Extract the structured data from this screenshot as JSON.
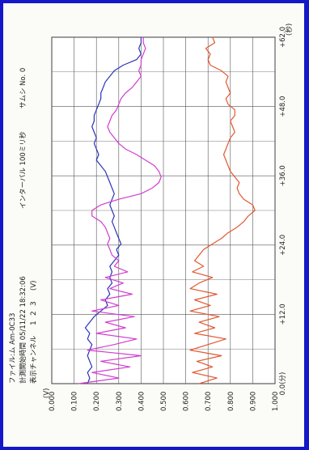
{
  "header": {
    "line1": "ファイル:ム  Am-0C33",
    "line2": "計測開始時間 05/11/22  18:32:06",
    "line3": "表示チャンネル",
    "channels": [
      "1",
      "2",
      "3"
    ],
    "unit_v": "(V)",
    "interval": "インターバル 100ミリ秒",
    "sheet": "サムシ No. 0"
  },
  "colors": {
    "series1": "#2b34b8",
    "series2": "#e3572f",
    "series3": "#d23bd0",
    "grid": "#555555",
    "border": "#1418c8"
  },
  "chart_data": {
    "type": "line",
    "rotated": "90deg-clockwise",
    "xlabel": "(秒)",
    "x_ticks": [
      "0.0(分)",
      "+12.0",
      "+24.0",
      "+36.0",
      "+48.0",
      "+62.0"
    ],
    "xlim": [
      0,
      62
    ],
    "ylabel": "(V)",
    "y_ticks": [
      "1.000",
      "0.900",
      "0.800",
      "0.700",
      "0.600",
      "0.500",
      "0.400",
      "0.300",
      "0.200",
      "0.100",
      "0.000"
    ],
    "ylim": [
      0,
      1
    ],
    "grid": true,
    "series": [
      {
        "name": "1",
        "color": "#2b34b8",
        "x": [
          0,
          1,
          2,
          3,
          4,
          5,
          6,
          7,
          8,
          9,
          10,
          11,
          12,
          13,
          14,
          15,
          16,
          17,
          18,
          19,
          20,
          21,
          22,
          23,
          24,
          25,
          26,
          27,
          28,
          29,
          30,
          31,
          32,
          33,
          34,
          35,
          36,
          37,
          38,
          39,
          40,
          41,
          42,
          43,
          44,
          45,
          46,
          47,
          48,
          49,
          50,
          51,
          52,
          53,
          54,
          55,
          56,
          57,
          58,
          59,
          60,
          61,
          62
        ],
        "values": [
          0.16,
          0.17,
          0.16,
          0.18,
          0.17,
          0.16,
          0.17,
          0.18,
          0.16,
          0.17,
          0.15,
          0.17,
          0.19,
          0.22,
          0.25,
          0.24,
          0.26,
          0.25,
          0.27,
          0.26,
          0.27,
          0.26,
          0.28,
          0.3,
          0.29,
          0.31,
          0.3,
          0.29,
          0.28,
          0.27,
          0.28,
          0.27,
          0.26,
          0.27,
          0.28,
          0.27,
          0.26,
          0.25,
          0.24,
          0.22,
          0.2,
          0.21,
          0.2,
          0.19,
          0.2,
          0.19,
          0.18,
          0.19,
          0.19,
          0.2,
          0.21,
          0.22,
          0.22,
          0.23,
          0.24,
          0.26,
          0.28,
          0.32,
          0.38,
          0.4,
          0.39,
          0.4,
          0.4
        ]
      },
      {
        "name": "2",
        "color": "#e3572f",
        "x": [
          0,
          1,
          2,
          3,
          4,
          5,
          6,
          7,
          8,
          9,
          10,
          11,
          12,
          13,
          14,
          15,
          16,
          17,
          18,
          19,
          20,
          21,
          22,
          23,
          24,
          25,
          26,
          27,
          28,
          29,
          30,
          31,
          32,
          33,
          34,
          35,
          36,
          37,
          38,
          39,
          40,
          41,
          42,
          43,
          44,
          45,
          46,
          47,
          48,
          49,
          50,
          51,
          52,
          53,
          54,
          55,
          56,
          57,
          58,
          59,
          60,
          61,
          62
        ],
        "values": [
          0.66,
          0.74,
          0.63,
          0.72,
          0.65,
          0.76,
          0.62,
          0.7,
          0.78,
          0.64,
          0.73,
          0.66,
          0.75,
          0.62,
          0.71,
          0.64,
          0.74,
          0.62,
          0.66,
          0.72,
          0.63,
          0.68,
          0.64,
          0.66,
          0.68,
          0.72,
          0.76,
          0.79,
          0.83,
          0.86,
          0.88,
          0.91,
          0.9,
          0.86,
          0.84,
          0.83,
          0.84,
          0.82,
          0.8,
          0.79,
          0.78,
          0.77,
          0.78,
          0.79,
          0.8,
          0.82,
          0.81,
          0.8,
          0.82,
          0.82,
          0.79,
          0.78,
          0.8,
          0.79,
          0.78,
          0.79,
          0.76,
          0.71,
          0.7,
          0.71,
          0.69,
          0.73,
          0.72
        ]
      },
      {
        "name": "3",
        "color": "#d23bd0",
        "x": [
          0,
          1,
          2,
          3,
          4,
          5,
          6,
          7,
          8,
          9,
          10,
          11,
          12,
          13,
          14,
          15,
          16,
          17,
          18,
          19,
          20,
          21,
          22,
          23,
          24,
          25,
          26,
          27,
          28,
          29,
          30,
          31,
          32,
          33,
          34,
          35,
          36,
          37,
          38,
          39,
          40,
          41,
          42,
          43,
          44,
          45,
          46,
          47,
          48,
          49,
          50,
          51,
          52,
          53,
          54,
          55,
          56,
          57,
          58,
          59,
          60,
          61,
          62
        ],
        "values": [
          0.12,
          0.3,
          0.18,
          0.35,
          0.22,
          0.4,
          0.16,
          0.28,
          0.38,
          0.2,
          0.33,
          0.24,
          0.37,
          0.18,
          0.3,
          0.22,
          0.36,
          0.26,
          0.32,
          0.24,
          0.34,
          0.28,
          0.3,
          0.27,
          0.26,
          0.25,
          0.26,
          0.25,
          0.24,
          0.22,
          0.18,
          0.18,
          0.22,
          0.3,
          0.4,
          0.45,
          0.48,
          0.49,
          0.48,
          0.46,
          0.42,
          0.38,
          0.33,
          0.3,
          0.28,
          0.26,
          0.25,
          0.26,
          0.27,
          0.29,
          0.3,
          0.31,
          0.33,
          0.36,
          0.38,
          0.4,
          0.39,
          0.4,
          0.4,
          0.41,
          0.42,
          0.41,
          0.41
        ]
      }
    ]
  }
}
